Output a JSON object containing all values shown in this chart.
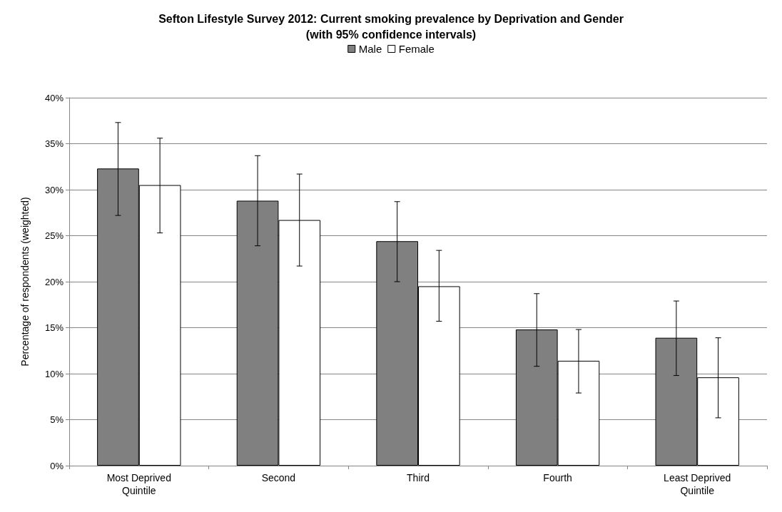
{
  "chart_data": {
    "type": "bar",
    "title": "Sefton Lifestyle Survey 2012: Current smoking prevalence by Deprivation and Gender\n(with 95% confidence intervals)",
    "ylabel": "Percentage of respondents (weighted)",
    "categories": [
      "Most Deprived\nQuintile",
      "Second",
      "Third",
      "Fourth",
      "Least Deprived\nQuintile"
    ],
    "series": [
      {
        "name": "Male",
        "color": "#808080",
        "values": [
          32.3,
          28.8,
          24.4,
          14.8,
          13.9
        ],
        "errors": [
          [
            27.2,
            37.3
          ],
          [
            23.9,
            33.7
          ],
          [
            20.0,
            28.7
          ],
          [
            10.8,
            18.7
          ],
          [
            9.8,
            17.9
          ]
        ]
      },
      {
        "name": "Female",
        "color": "#ffffff",
        "values": [
          30.5,
          26.7,
          19.5,
          11.4,
          9.6
        ],
        "errors": [
          [
            25.3,
            35.6
          ],
          [
            21.7,
            31.7
          ],
          [
            15.7,
            23.4
          ],
          [
            7.9,
            14.8
          ],
          [
            5.2,
            13.9
          ]
        ]
      }
    ],
    "ylim": [
      0,
      40
    ],
    "yticks": [
      {
        "value": 0,
        "label": "0%"
      },
      {
        "value": 5,
        "label": "5%"
      },
      {
        "value": 10,
        "label": "10%"
      },
      {
        "value": 15,
        "label": "15%"
      },
      {
        "value": 20,
        "label": "20%"
      },
      {
        "value": 25,
        "label": "25%"
      },
      {
        "value": 30,
        "label": "30%"
      },
      {
        "value": 35,
        "label": "35%"
      },
      {
        "value": 40,
        "label": "40%"
      }
    ],
    "grid": "y",
    "legend": "top"
  }
}
